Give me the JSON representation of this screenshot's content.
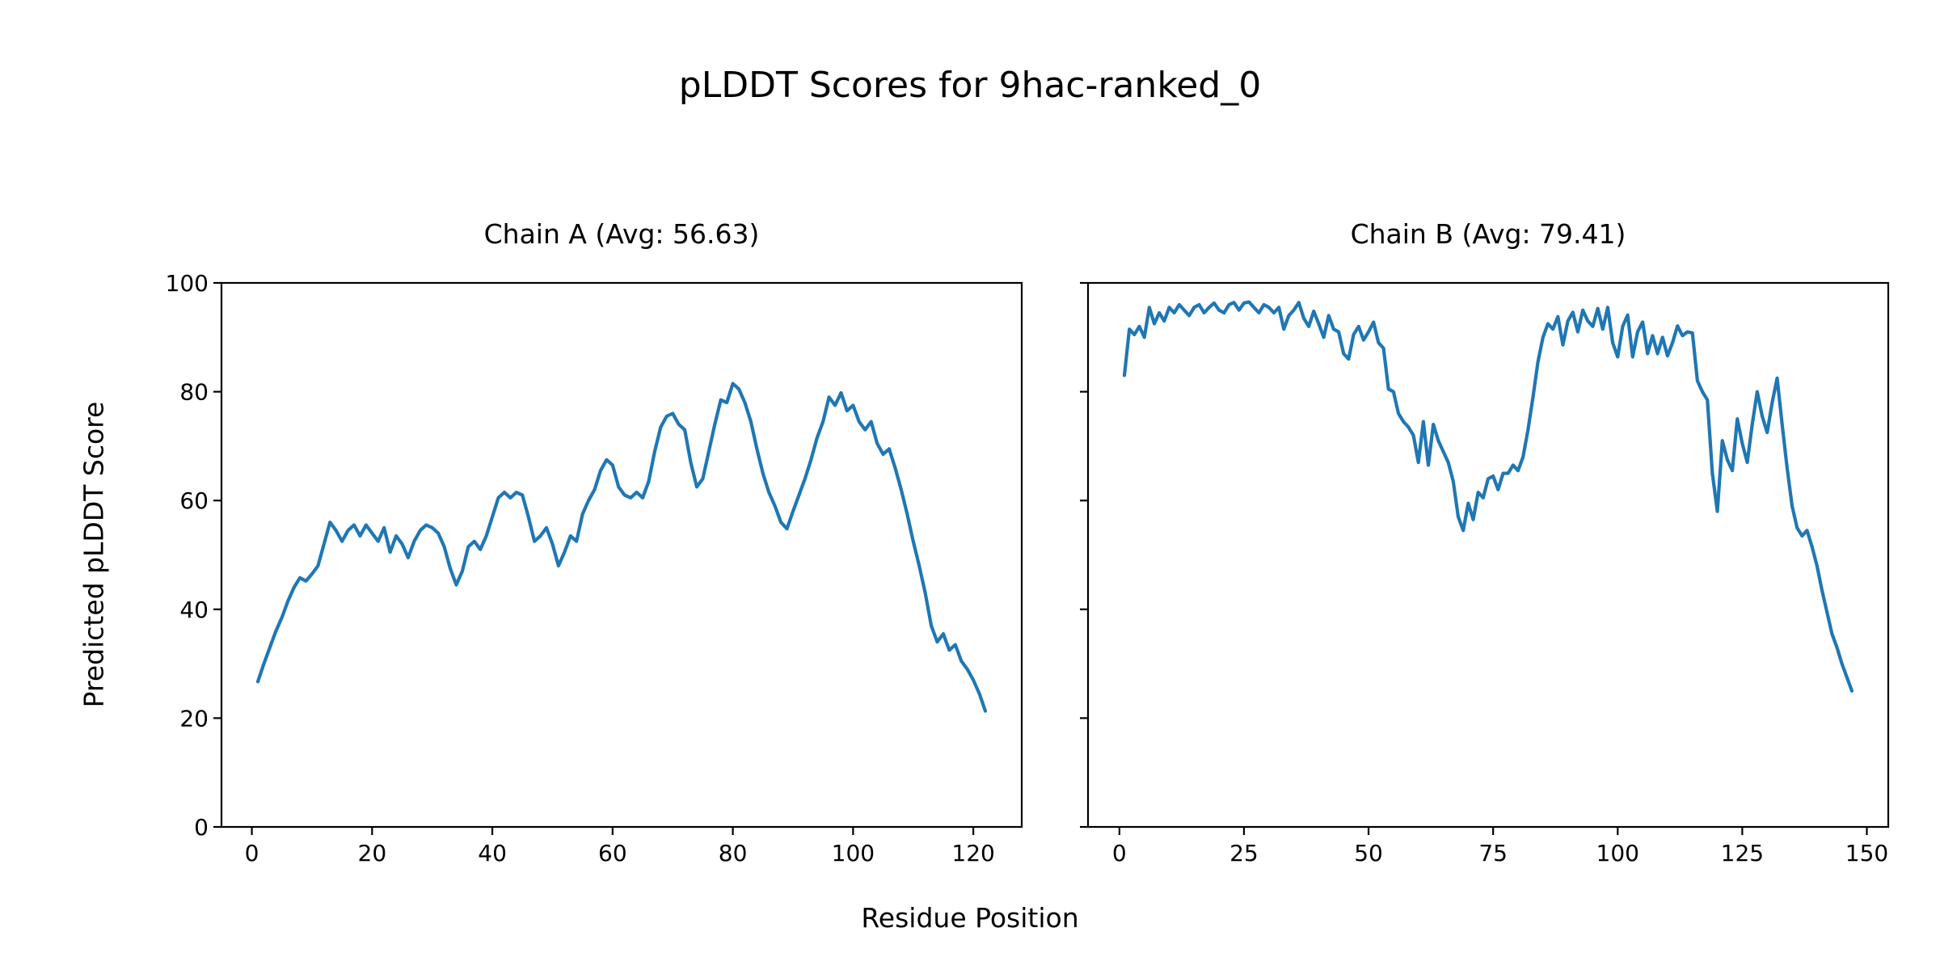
{
  "figure": {
    "suptitle": "pLDDT Scores for 9hac-ranked_0",
    "xlabel": "Residue Position",
    "ylabel": "Predicted pLDDT Score",
    "background_color": "#ffffff",
    "text_color": "#000000",
    "spine_color": "#000000"
  },
  "chart_data": [
    {
      "type": "line",
      "title": "Chain A (Avg: 56.63)",
      "series_name": "Chain A",
      "avg_label": 56.63,
      "line_color": "#1f77b4",
      "x_start": 1,
      "xticks": [
        0,
        20,
        40,
        60,
        80,
        100,
        120
      ],
      "yticks": [
        0,
        20,
        40,
        60,
        80,
        100
      ],
      "ylim": [
        0,
        100
      ],
      "grid": false,
      "values": [
        26.7,
        30,
        33,
        36,
        38.5,
        41.5,
        44,
        45.8,
        45.2,
        46.5,
        48,
        52,
        56,
        54.5,
        52.5,
        54.5,
        55.5,
        53.5,
        55.5,
        54,
        52.5,
        55,
        50.5,
        53.5,
        52,
        49.5,
        52.5,
        54.5,
        55.5,
        55,
        54,
        51.5,
        47.5,
        44.5,
        47,
        51.5,
        52.5,
        51,
        53.5,
        57,
        60.5,
        61.5,
        60.5,
        61.5,
        61,
        57,
        52.5,
        53.5,
        55,
        52,
        48,
        50.5,
        53.5,
        52.5,
        57.5,
        60,
        62,
        65.5,
        67.5,
        66.5,
        62.5,
        61,
        60.5,
        61.5,
        60.5,
        63.5,
        69,
        73.5,
        75.5,
        76,
        74,
        73,
        67,
        62.5,
        64,
        69,
        74,
        78.5,
        78,
        81.5,
        80.5,
        78,
        74.5,
        69.5,
        65,
        61.5,
        59,
        56,
        54.8,
        58,
        61,
        64,
        67.5,
        71.5,
        74.5,
        79,
        77.5,
        79.8,
        76.5,
        77.5,
        74.5,
        73,
        74.5,
        70.5,
        68.5,
        69.5,
        66,
        62,
        57.5,
        52.5,
        48,
        43,
        37,
        34,
        35.5,
        32.5,
        33.5,
        30.5,
        29,
        27,
        24.5,
        21.3
      ]
    },
    {
      "type": "line",
      "title": "Chain B (Avg: 79.41)",
      "series_name": "Chain B",
      "avg_label": 79.41,
      "line_color": "#1f77b4",
      "x_start": 1,
      "xticks": [
        0,
        25,
        50,
        75,
        100,
        125,
        150
      ],
      "yticks": [
        0,
        20,
        40,
        60,
        80,
        100
      ],
      "ylim": [
        0,
        100
      ],
      "grid": false,
      "values": [
        83,
        91.5,
        90.5,
        92,
        90,
        95.5,
        92.5,
        94.5,
        93,
        95.5,
        94.5,
        96,
        95,
        94,
        95.5,
        96,
        94.5,
        95.5,
        96.3,
        95,
        94.5,
        96,
        96.4,
        95,
        96.3,
        96.5,
        95.5,
        94.5,
        96,
        95.5,
        94.5,
        95.5,
        91.5,
        94,
        95,
        96.4,
        93.5,
        92,
        94.8,
        92.5,
        90,
        94,
        91.5,
        91,
        87,
        86,
        90.5,
        92,
        89.5,
        91,
        92.8,
        89,
        88,
        80.5,
        80,
        76,
        74.5,
        73.5,
        72,
        67,
        74.5,
        66.5,
        74,
        71,
        69,
        67,
        63.5,
        57,
        54.5,
        59.5,
        56.5,
        61.5,
        60.5,
        64,
        64.5,
        62,
        65,
        65,
        66.5,
        65.5,
        68,
        73,
        79,
        85.5,
        90,
        92.5,
        91.5,
        93.8,
        88.6,
        93,
        94.6,
        91,
        95,
        93,
        92,
        95.3,
        91.5,
        95.5,
        89,
        86.4,
        92,
        94.1,
        86.4,
        91,
        92.8,
        87,
        90.3,
        87,
        90,
        86.6,
        89,
        92.1,
        90.3,
        91,
        90.8,
        82,
        80,
        78.5,
        65,
        58,
        71,
        67.5,
        65.5,
        75,
        70.5,
        67,
        74,
        80,
        75.5,
        72.5,
        78,
        82.5,
        74,
        66,
        59,
        55,
        53.5,
        54.5,
        51.5,
        48,
        43.5,
        39.5,
        35.5,
        33,
        30,
        27.5,
        25
      ]
    }
  ]
}
